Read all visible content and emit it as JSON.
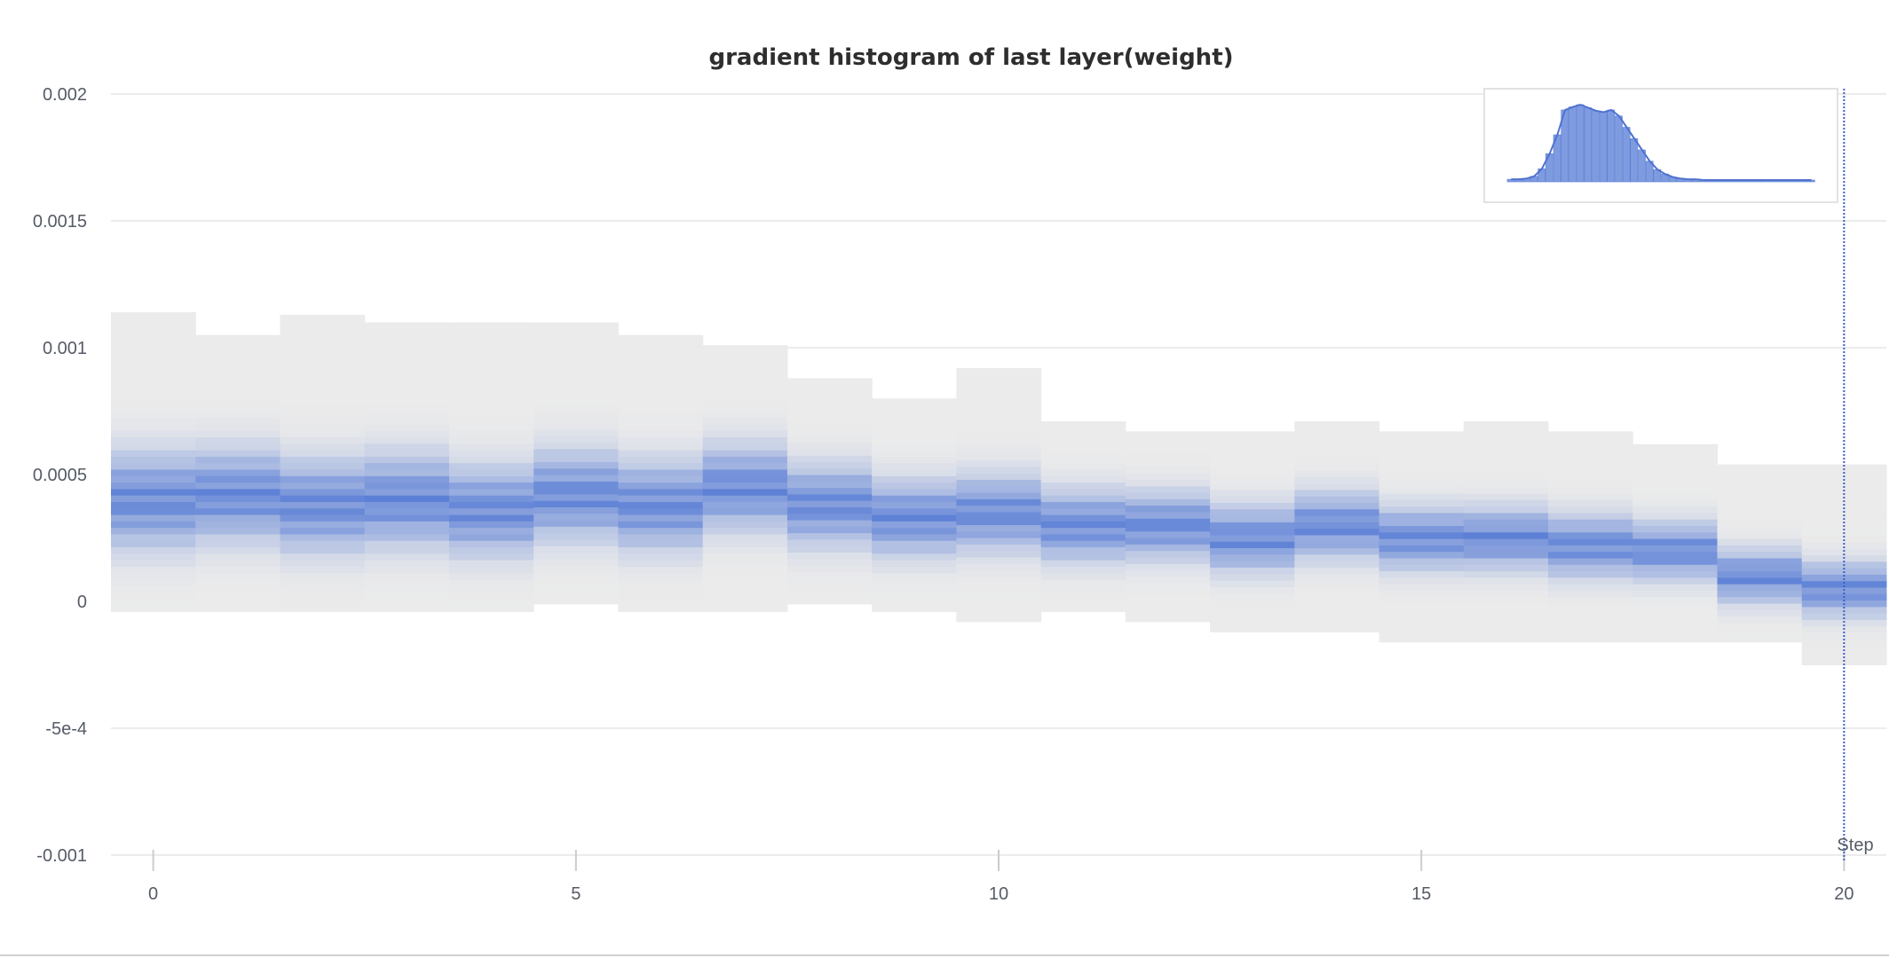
{
  "chart_data": {
    "type": "heatmap",
    "title": "gradient histogram of last layer(weight)",
    "xlabel": "Step",
    "ylabel": "",
    "xlim": [
      -0.5,
      20.5
    ],
    "ylim": [
      -0.001,
      0.002
    ],
    "x_ticks": [
      "0",
      "5",
      "10",
      "15",
      "20"
    ],
    "y_ticks": [
      "0.002",
      "0.0015",
      "0.001",
      "0.0005",
      "0",
      "-5e-4",
      "-0.001"
    ],
    "colors": {
      "low": "#ebebeb",
      "high": "#5b7fd6",
      "cursor": "#3a5fc8"
    },
    "hover_step": 20,
    "steps": [
      {
        "step": 0,
        "min": -4e-05,
        "max": 0.00114,
        "peak": 0.0004,
        "spread": 0.00022
      },
      {
        "step": 1,
        "min": -4e-05,
        "max": 0.00105,
        "peak": 0.00042,
        "spread": 0.00021
      },
      {
        "step": 2,
        "min": -4e-05,
        "max": 0.00113,
        "peak": 0.00038,
        "spread": 0.00021
      },
      {
        "step": 3,
        "min": -4e-05,
        "max": 0.0011,
        "peak": 0.0004,
        "spread": 0.00021
      },
      {
        "step": 4,
        "min": -4e-05,
        "max": 0.0011,
        "peak": 0.00036,
        "spread": 0.0002
      },
      {
        "step": 5,
        "min": -1e-05,
        "max": 0.0011,
        "peak": 0.00042,
        "spread": 0.0002
      },
      {
        "step": 6,
        "min": -4e-05,
        "max": 0.00105,
        "peak": 0.00038,
        "spread": 0.0002
      },
      {
        "step": 7,
        "min": -4e-05,
        "max": 0.00101,
        "peak": 0.00045,
        "spread": 0.00019
      },
      {
        "step": 8,
        "min": -1e-05,
        "max": 0.00088,
        "peak": 0.00038,
        "spread": 0.00018
      },
      {
        "step": 9,
        "min": -4e-05,
        "max": 0.0008,
        "peak": 0.00033,
        "spread": 0.00017
      },
      {
        "step": 10,
        "min": -8e-05,
        "max": 0.00092,
        "peak": 0.00035,
        "spread": 0.00017
      },
      {
        "step": 11,
        "min": -4e-05,
        "max": 0.00071,
        "peak": 0.0003,
        "spread": 0.00016
      },
      {
        "step": 12,
        "min": -8e-05,
        "max": 0.00067,
        "peak": 0.0003,
        "spread": 0.00015
      },
      {
        "step": 13,
        "min": -0.00012,
        "max": 0.00067,
        "peak": 0.00025,
        "spread": 0.00015
      },
      {
        "step": 14,
        "min": -0.00012,
        "max": 0.00071,
        "peak": 0.0003,
        "spread": 0.00015
      },
      {
        "step": 15,
        "min": -0.00016,
        "max": 0.00067,
        "peak": 0.00025,
        "spread": 0.00014
      },
      {
        "step": 16,
        "min": -0.00016,
        "max": 0.00071,
        "peak": 0.00025,
        "spread": 0.00014
      },
      {
        "step": 17,
        "min": -0.00016,
        "max": 0.00067,
        "peak": 0.00022,
        "spread": 0.00014
      },
      {
        "step": 18,
        "min": -0.00016,
        "max": 0.00062,
        "peak": 0.0002,
        "spread": 0.00013
      },
      {
        "step": 19,
        "min": -0.00016,
        "max": 0.00054,
        "peak": 0.0001,
        "spread": 0.00012
      },
      {
        "step": 20,
        "min": -0.00025,
        "max": 0.00054,
        "peak": 5e-05,
        "spread": 0.00012
      }
    ],
    "legend_histogram": [
      0.01,
      0.01,
      0.02,
      0.05,
      0.15,
      0.35,
      0.6,
      0.93,
      0.97,
      1.0,
      0.96,
      0.92,
      0.9,
      0.93,
      0.85,
      0.7,
      0.55,
      0.4,
      0.25,
      0.14,
      0.08,
      0.04,
      0.02,
      0.01,
      0.01,
      0.0,
      0.0,
      0.0,
      0.0,
      0.0,
      0.0,
      0.0,
      0.0,
      0.0,
      0.0,
      0.0,
      0.0,
      0.0,
      0.0,
      0.0
    ]
  }
}
